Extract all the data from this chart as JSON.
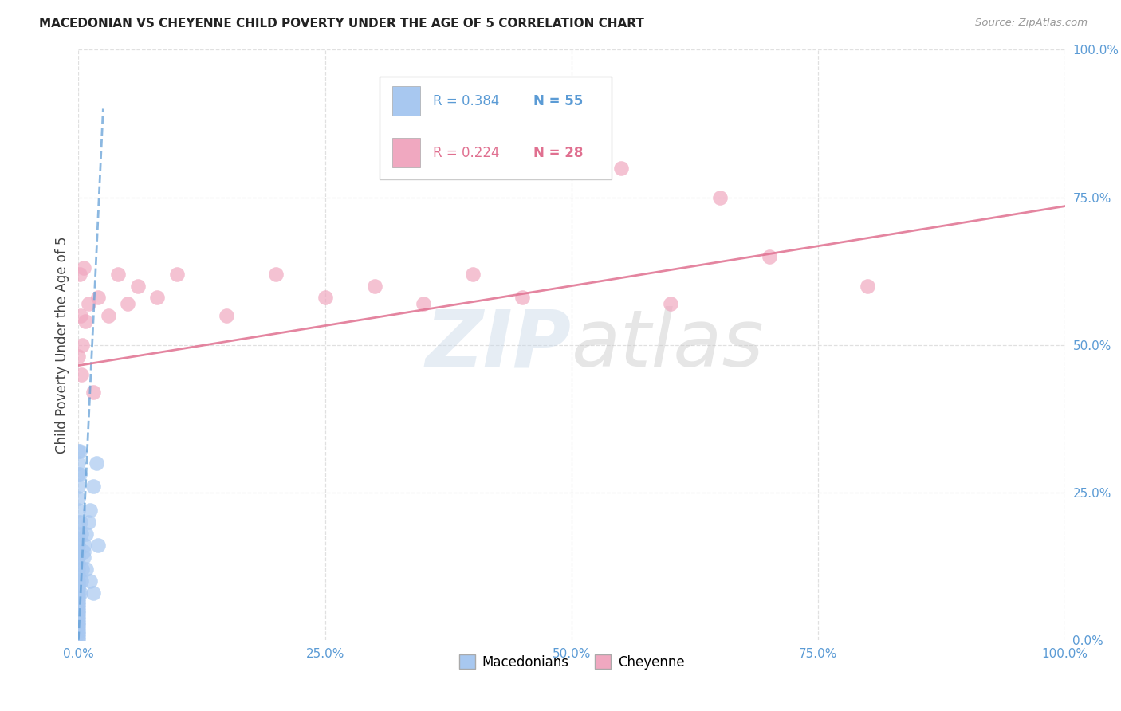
{
  "title": "MACEDONIAN VS CHEYENNE CHILD POVERTY UNDER THE AGE OF 5 CORRELATION CHART",
  "source": "Source: ZipAtlas.com",
  "ylabel": "Child Poverty Under the Age of 5",
  "legend_macedonians": "Macedonians",
  "legend_cheyenne": "Cheyenne",
  "legend_r_macedonians": "R = 0.384",
  "legend_n_macedonians": "N = 55",
  "legend_r_cheyenne": "R = 0.224",
  "legend_n_cheyenne": "N = 28",
  "macedonian_color": "#a8c8f0",
  "cheyenne_color": "#f0a8c0",
  "macedonian_line_color": "#5b9bd5",
  "cheyenne_line_color": "#e07090",
  "watermark_zip": "ZIP",
  "watermark_atlas": "atlas",
  "macedonian_scatter_x": [
    0.0,
    0.0,
    0.0,
    0.0,
    0.0,
    0.0,
    0.0,
    0.0,
    0.0,
    0.0,
    0.0,
    0.0,
    0.0,
    0.0,
    0.0,
    0.0,
    0.0,
    0.0,
    0.0,
    0.0,
    0.0,
    0.0,
    0.0,
    0.0,
    0.0,
    0.0,
    0.0,
    0.0,
    0.0,
    0.0,
    0.002,
    0.003,
    0.004,
    0.005,
    0.006,
    0.008,
    0.01,
    0.012,
    0.015,
    0.018,
    0.0,
    0.0,
    0.0,
    0.0,
    0.0,
    0.0,
    0.001,
    0.001,
    0.002,
    0.003,
    0.005,
    0.008,
    0.012,
    0.015,
    0.02
  ],
  "macedonian_scatter_y": [
    0.0,
    0.005,
    0.01,
    0.015,
    0.02,
    0.025,
    0.03,
    0.035,
    0.04,
    0.045,
    0.05,
    0.055,
    0.06,
    0.065,
    0.07,
    0.075,
    0.08,
    0.085,
    0.09,
    0.095,
    0.1,
    0.11,
    0.12,
    0.13,
    0.14,
    0.15,
    0.16,
    0.17,
    0.18,
    0.2,
    0.08,
    0.1,
    0.12,
    0.14,
    0.16,
    0.18,
    0.2,
    0.22,
    0.26,
    0.3,
    0.22,
    0.24,
    0.26,
    0.28,
    0.3,
    0.32,
    0.28,
    0.32,
    0.2,
    0.18,
    0.15,
    0.12,
    0.1,
    0.08,
    0.16
  ],
  "macedonian_line_x": [
    0.0,
    0.025
  ],
  "macedonian_line_y": [
    0.0,
    0.9
  ],
  "cheyenne_scatter_x": [
    0.0,
    0.001,
    0.002,
    0.003,
    0.004,
    0.005,
    0.007,
    0.01,
    0.015,
    0.02,
    0.03,
    0.04,
    0.05,
    0.06,
    0.08,
    0.1,
    0.15,
    0.2,
    0.25,
    0.3,
    0.35,
    0.4,
    0.45,
    0.55,
    0.6,
    0.65,
    0.7,
    0.8
  ],
  "cheyenne_scatter_y": [
    0.48,
    0.62,
    0.55,
    0.45,
    0.5,
    0.63,
    0.54,
    0.57,
    0.42,
    0.58,
    0.55,
    0.62,
    0.57,
    0.6,
    0.58,
    0.62,
    0.55,
    0.62,
    0.58,
    0.6,
    0.57,
    0.62,
    0.58,
    0.8,
    0.57,
    0.75,
    0.65,
    0.6
  ],
  "cheyenne_line_x": [
    0.0,
    1.0
  ],
  "cheyenne_line_y": [
    0.465,
    0.735
  ],
  "xlim": [
    0.0,
    1.0
  ],
  "ylim": [
    0.0,
    1.0
  ],
  "xticks": [
    0.0,
    0.25,
    0.5,
    0.75,
    1.0
  ],
  "xtick_labels": [
    "0.0%",
    "25.0%",
    "50.0%",
    "75.0%",
    "100.0%"
  ],
  "yticks": [
    0.0,
    0.25,
    0.5,
    0.75,
    1.0
  ],
  "ytick_labels": [
    "0.0%",
    "25.0%",
    "50.0%",
    "75.0%",
    "100.0%"
  ],
  "background_color": "#ffffff",
  "grid_color": "#e0e0e0",
  "tick_color": "#5b9bd5"
}
